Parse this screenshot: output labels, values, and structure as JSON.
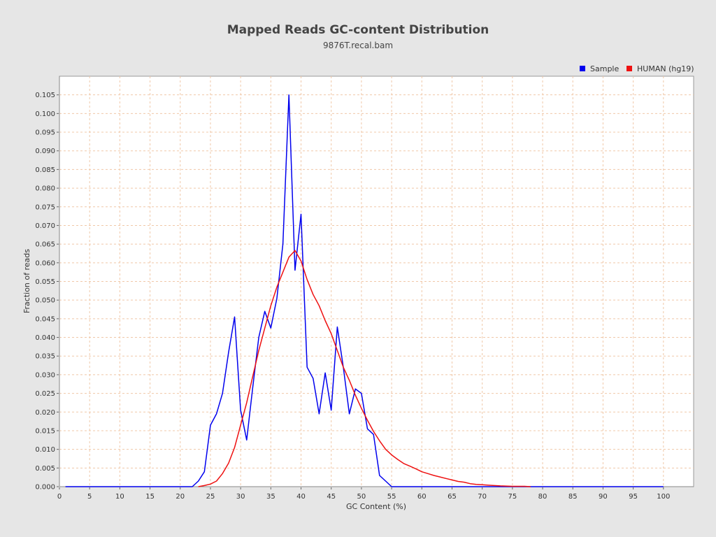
{
  "chart_data": {
    "type": "line",
    "title": "Mapped Reads GC-content Distribution",
    "subtitle": "9876T.recal.bam",
    "xlabel": "GC Content (%)",
    "ylabel": "Fraction of reads",
    "xlim": [
      0,
      105
    ],
    "ylim": [
      0,
      0.11
    ],
    "xticks": [
      0,
      5,
      10,
      15,
      20,
      25,
      30,
      35,
      40,
      45,
      50,
      55,
      60,
      65,
      70,
      75,
      80,
      85,
      90,
      95,
      100
    ],
    "yticks": [
      "0.000",
      "0.005",
      "0.010",
      "0.015",
      "0.020",
      "0.025",
      "0.030",
      "0.035",
      "0.040",
      "0.045",
      "0.050",
      "0.055",
      "0.060",
      "0.065",
      "0.070",
      "0.075",
      "0.080",
      "0.085",
      "0.090",
      "0.095",
      "0.100",
      "0.105"
    ],
    "grid": true,
    "legend": "top-right",
    "series": [
      {
        "name": "Sample",
        "color": "#0000ee",
        "points": [
          [
            1,
            0
          ],
          [
            5,
            0
          ],
          [
            10,
            0
          ],
          [
            15,
            0
          ],
          [
            20,
            0
          ],
          [
            22,
            0
          ],
          [
            23,
            0.0015
          ],
          [
            24,
            0.004
          ],
          [
            25,
            0.0165
          ],
          [
            26,
            0.0195
          ],
          [
            27,
            0.025
          ],
          [
            28,
            0.036
          ],
          [
            29,
            0.0455
          ],
          [
            30,
            0.0205
          ],
          [
            31,
            0.0125
          ],
          [
            32,
            0.0265
          ],
          [
            33,
            0.04
          ],
          [
            34,
            0.047
          ],
          [
            35,
            0.0425
          ],
          [
            36,
            0.0505
          ],
          [
            37,
            0.065
          ],
          [
            38,
            0.105
          ],
          [
            39,
            0.058
          ],
          [
            40,
            0.073
          ],
          [
            41,
            0.032
          ],
          [
            42,
            0.029
          ],
          [
            43,
            0.0195
          ],
          [
            44,
            0.0305
          ],
          [
            45,
            0.0205
          ],
          [
            46,
            0.0428
          ],
          [
            47,
            0.032
          ],
          [
            48,
            0.0195
          ],
          [
            49,
            0.0262
          ],
          [
            50,
            0.025
          ],
          [
            51,
            0.0155
          ],
          [
            52,
            0.014
          ],
          [
            53,
            0.003
          ],
          [
            54,
            0.0015
          ],
          [
            55,
            0
          ],
          [
            60,
            0
          ],
          [
            70,
            0
          ],
          [
            80,
            0
          ],
          [
            90,
            0
          ],
          [
            100,
            0
          ]
        ]
      },
      {
        "name": "HUMAN (hg19)",
        "color": "#ee1111",
        "points": [
          [
            23,
            0
          ],
          [
            24,
            0.0003
          ],
          [
            25,
            0.0007
          ],
          [
            26,
            0.0015
          ],
          [
            27,
            0.0035
          ],
          [
            28,
            0.0063
          ],
          [
            29,
            0.0105
          ],
          [
            30,
            0.0165
          ],
          [
            31,
            0.0225
          ],
          [
            32,
            0.0295
          ],
          [
            33,
            0.0365
          ],
          [
            34,
            0.0425
          ],
          [
            35,
            0.0485
          ],
          [
            36,
            0.0535
          ],
          [
            37,
            0.0575
          ],
          [
            38,
            0.0615
          ],
          [
            39,
            0.0633
          ],
          [
            40,
            0.0605
          ],
          [
            41,
            0.0555
          ],
          [
            42,
            0.0515
          ],
          [
            43,
            0.0485
          ],
          [
            44,
            0.0445
          ],
          [
            45,
            0.041
          ],
          [
            46,
            0.0365
          ],
          [
            47,
            0.032
          ],
          [
            48,
            0.0285
          ],
          [
            49,
            0.0245
          ],
          [
            50,
            0.021
          ],
          [
            51,
            0.0178
          ],
          [
            52,
            0.0148
          ],
          [
            53,
            0.0123
          ],
          [
            54,
            0.01
          ],
          [
            55,
            0.0085
          ],
          [
            56,
            0.0073
          ],
          [
            57,
            0.0062
          ],
          [
            58,
            0.0055
          ],
          [
            59,
            0.0048
          ],
          [
            60,
            0.004
          ],
          [
            61,
            0.0035
          ],
          [
            62,
            0.003
          ],
          [
            63,
            0.0026
          ],
          [
            64,
            0.0022
          ],
          [
            65,
            0.0018
          ],
          [
            66,
            0.0014
          ],
          [
            67,
            0.0012
          ],
          [
            68,
            0.0008
          ],
          [
            69,
            0.0006
          ],
          [
            70,
            0.0005
          ],
          [
            71,
            0.0004
          ],
          [
            72,
            0.0003
          ],
          [
            73,
            0.0002
          ],
          [
            75,
            0.0001
          ],
          [
            77,
            0.0001
          ],
          [
            78,
            0
          ]
        ]
      }
    ]
  }
}
